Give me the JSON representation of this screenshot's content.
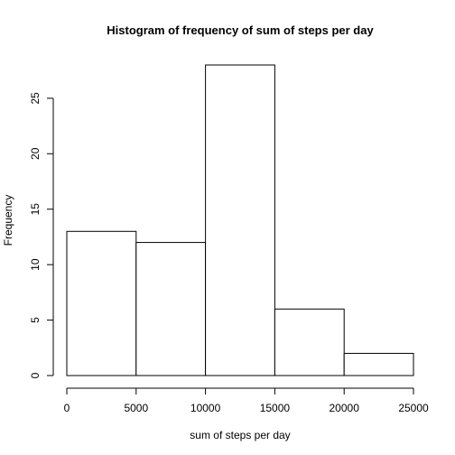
{
  "chart_data": {
    "type": "bar",
    "subtype": "histogram",
    "title": "Histogram of frequency of sum of steps per day",
    "xlabel": "sum of steps per day",
    "ylabel": "Frequency",
    "bins": [
      {
        "from": 0,
        "to": 5000,
        "count": 13
      },
      {
        "from": 5000,
        "to": 10000,
        "count": 12
      },
      {
        "from": 10000,
        "to": 15000,
        "count": 28
      },
      {
        "from": 15000,
        "to": 20000,
        "count": 6
      },
      {
        "from": 20000,
        "to": 25000,
        "count": 2
      }
    ],
    "xlim": [
      0,
      25000
    ],
    "ylim": [
      0,
      28
    ],
    "xticks": [
      0,
      5000,
      10000,
      15000,
      20000,
      25000
    ],
    "yticks": [
      0,
      5,
      10,
      15,
      20,
      25
    ],
    "grid": false,
    "legend": "none",
    "colors": {
      "bar_fill": "#ffffff",
      "bar_stroke": "#000000",
      "axis": "#000000"
    }
  }
}
